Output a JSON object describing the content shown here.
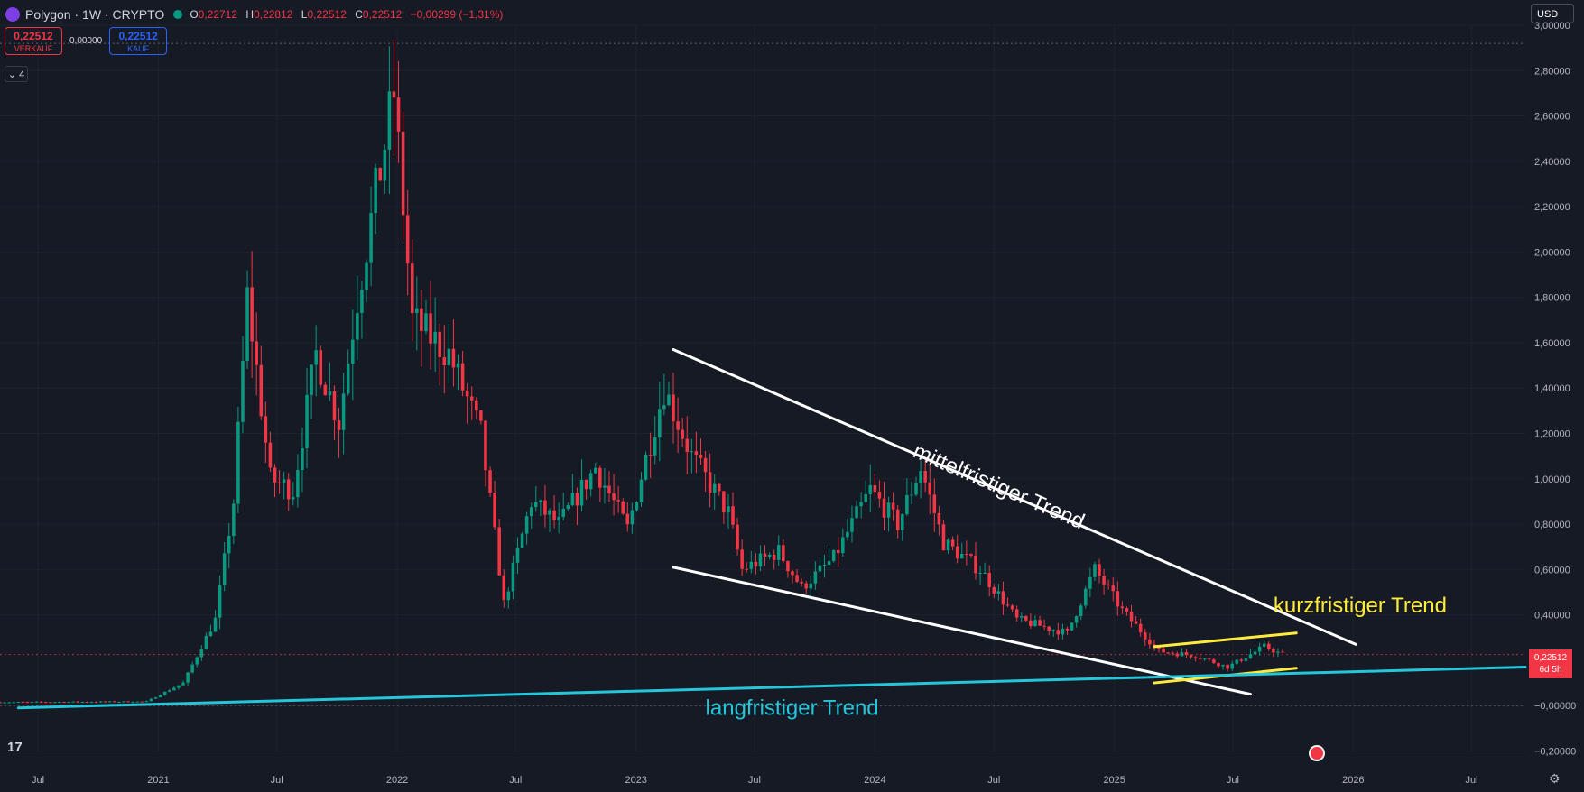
{
  "header": {
    "symbol": "Polygon · 1W · CRYPTO",
    "open_label": "O",
    "open": "0,22712",
    "high_label": "H",
    "high": "0,22812",
    "low_label": "L",
    "low": "0,22512",
    "close_label": "C",
    "close": "0,22512",
    "change": "−0,00299 (−1,31%)"
  },
  "trade": {
    "sell_price": "0,22512",
    "sell_label": "VERKAUF",
    "spread": "0,00000",
    "buy_price": "0,22512",
    "buy_label": "KAUF"
  },
  "indicator_badge": "4",
  "currency": "USD",
  "last_price_tag": {
    "price": "0,22512",
    "countdown": "6d 5h"
  },
  "logo_text": "17",
  "colors": {
    "background": "#161a25",
    "up": "#089981",
    "down": "#f23645",
    "grid": "#1e222d"
  },
  "chart_data": {
    "type": "candlestick",
    "y_axis": {
      "ticks": [
        3.0,
        2.8,
        2.6,
        2.4,
        2.2,
        2.0,
        1.8,
        1.6,
        1.4,
        1.2,
        1.0,
        0.8,
        0.6,
        0.4,
        0.0,
        -0.2
      ],
      "tick_labels": [
        "3,00000",
        "2,80000",
        "2,60000",
        "2,40000",
        "2,20000",
        "2,00000",
        "1,80000",
        "1,60000",
        "1,40000",
        "1,20000",
        "1,00000",
        "0,80000",
        "0,60000",
        "0,40000",
        "−0,00000",
        "−0,20000"
      ],
      "range": [
        -0.21,
        3.0
      ]
    },
    "x_axis": {
      "range": [
        "2020-05-04",
        "2026-09-21"
      ],
      "ticks": [
        {
          "date": "2020-07-01",
          "label": "Jul"
        },
        {
          "date": "2021-01-01",
          "label": "2021"
        },
        {
          "date": "2021-07-01",
          "label": "Jul"
        },
        {
          "date": "2022-01-01",
          "label": "2022"
        },
        {
          "date": "2022-07-01",
          "label": "Jul"
        },
        {
          "date": "2023-01-01",
          "label": "2023"
        },
        {
          "date": "2023-07-01",
          "label": "Jul"
        },
        {
          "date": "2024-01-01",
          "label": "2024"
        },
        {
          "date": "2024-07-01",
          "label": "Jul"
        },
        {
          "date": "2025-01-01",
          "label": "2025"
        },
        {
          "date": "2025-07-01",
          "label": "Jul"
        },
        {
          "date": "2026-01-01",
          "label": "2026"
        },
        {
          "date": "2026-07-01",
          "label": "Jul"
        }
      ]
    },
    "price_anchors": [
      [
        "2020-05-04",
        0.015
      ],
      [
        "2020-12-14",
        0.018
      ],
      [
        "2021-02-08",
        0.1
      ],
      [
        "2021-03-29",
        0.38
      ],
      [
        "2021-04-26",
        0.9
      ],
      [
        "2021-05-17",
        1.8
      ],
      [
        "2021-06-21",
        1.0
      ],
      [
        "2021-07-26",
        0.95
      ],
      [
        "2021-08-30",
        1.55
      ],
      [
        "2021-10-04",
        1.25
      ],
      [
        "2021-11-01",
        1.8
      ],
      [
        "2021-12-27",
        2.7
      ],
      [
        "2022-01-24",
        1.7
      ],
      [
        "2022-03-21",
        1.55
      ],
      [
        "2022-05-09",
        1.2
      ],
      [
        "2022-06-13",
        0.45
      ],
      [
        "2022-07-25",
        0.9
      ],
      [
        "2022-09-05",
        0.8
      ],
      [
        "2022-10-31",
        1.05
      ],
      [
        "2022-12-19",
        0.78
      ],
      [
        "2023-02-13",
        1.4
      ],
      [
        "2023-03-27",
        1.1
      ],
      [
        "2023-05-22",
        0.85
      ],
      [
        "2023-06-12",
        0.6
      ],
      [
        "2023-08-07",
        0.68
      ],
      [
        "2023-09-11",
        0.52
      ],
      [
        "2023-10-30",
        0.65
      ],
      [
        "2023-12-25",
        0.95
      ],
      [
        "2024-02-05",
        0.8
      ],
      [
        "2024-03-11",
        1.05
      ],
      [
        "2024-04-15",
        0.72
      ],
      [
        "2024-06-10",
        0.6
      ],
      [
        "2024-08-05",
        0.38
      ],
      [
        "2024-10-21",
        0.32
      ],
      [
        "2024-12-02",
        0.6
      ],
      [
        "2025-01-13",
        0.42
      ],
      [
        "2025-03-10",
        0.24
      ],
      [
        "2025-05-05",
        0.22
      ],
      [
        "2025-06-23",
        0.17
      ],
      [
        "2025-08-18",
        0.26
      ],
      [
        "2025-09-15",
        0.225
      ]
    ],
    "labeled_values": {
      "high_annotation": 2.92,
      "last_price": 0.22512,
      "zero_line": 0.0
    },
    "trendlines": [
      {
        "name": "mittelfristiger Trend upper",
        "color": "#ffffff",
        "from": [
          "2023-02-27",
          1.57
        ],
        "to": [
          "2026-01-05",
          0.27
        ]
      },
      {
        "name": "mittelfristiger Trend lower",
        "color": "#ffffff",
        "from": [
          "2023-02-27",
          0.61
        ],
        "to": [
          "2025-07-28",
          0.05
        ]
      },
      {
        "name": "kurzfristiger Trend upper",
        "color": "#ffeb3b",
        "from": [
          "2025-03-03",
          0.26
        ],
        "to": [
          "2025-10-06",
          0.32
        ]
      },
      {
        "name": "kurzfristiger Trend lower",
        "color": "#ffeb3b",
        "from": [
          "2025-03-03",
          0.1
        ],
        "to": [
          "2025-10-06",
          0.165
        ]
      },
      {
        "name": "langfristiger Trend",
        "color": "#26c6da",
        "from": [
          "2020-06-01",
          -0.01
        ],
        "to": [
          "2026-09-21",
          0.17
        ]
      }
    ],
    "annotations": [
      {
        "text": "mittelfristiger Trend",
        "color": "#ffffff",
        "at": [
          "2024-02-26",
          1.1
        ]
      },
      {
        "text": "kurzfristiger Trend",
        "color": "#ffeb3b",
        "at": [
          "2025-09-01",
          0.41
        ]
      },
      {
        "text": "langfristiger Trend",
        "color": "#26c6da",
        "at": [
          "2023-04-17",
          -0.04
        ]
      }
    ]
  }
}
